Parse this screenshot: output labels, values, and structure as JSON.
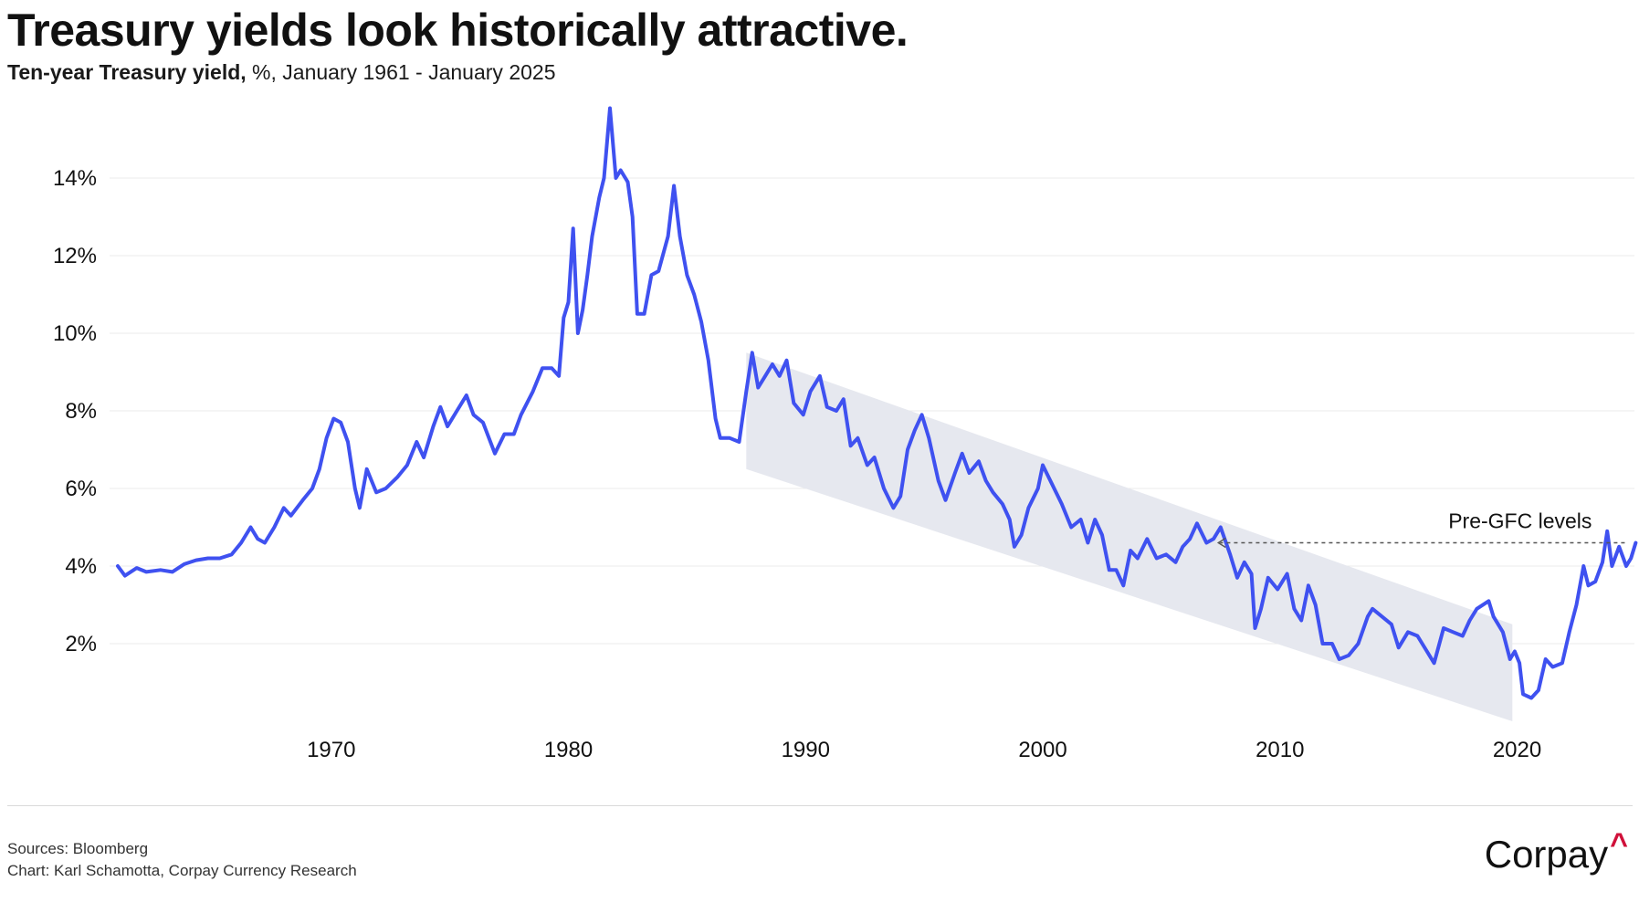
{
  "header": {
    "title": "Treasury yields look historically attractive.",
    "subtitle_bold": "Ten-year Treasury yield,",
    "subtitle_rest": " %, January 1961 - January 2025"
  },
  "colors": {
    "line": "#3f51f0",
    "band": "#e6e8ef",
    "grid": "#ebebeb",
    "text": "#111111",
    "logo_accent": "#d0103a"
  },
  "chart_data": {
    "type": "line",
    "title": "Treasury yields look historically attractive.",
    "subtitle": "Ten-year Treasury yield, %, January 1961 - January 2025",
    "xlabel": "",
    "ylabel": "",
    "xlim": [
      1961.0,
      2025.1
    ],
    "ylim": [
      0,
      16
    ],
    "yticks": [
      2,
      4,
      6,
      8,
      10,
      12,
      14
    ],
    "ytick_labels": [
      "2%",
      "4%",
      "6%",
      "8%",
      "10%",
      "12%",
      "14%"
    ],
    "xticks": [
      1970,
      1980,
      1990,
      2000,
      2010,
      2020
    ],
    "xtick_labels": [
      "1970",
      "1980",
      "1990",
      "2000",
      "2010",
      "2020"
    ],
    "grid": "horizontal",
    "legend": "none",
    "series": [
      {
        "values": [
          [
            1961.0,
            4.0
          ],
          [
            1961.3,
            3.75
          ],
          [
            1961.8,
            3.95
          ],
          [
            1962.2,
            3.85
          ],
          [
            1962.8,
            3.9
          ],
          [
            1963.3,
            3.85
          ],
          [
            1963.8,
            4.05
          ],
          [
            1964.3,
            4.15
          ],
          [
            1964.8,
            4.2
          ],
          [
            1965.3,
            4.2
          ],
          [
            1965.8,
            4.3
          ],
          [
            1966.2,
            4.6
          ],
          [
            1966.6,
            5.0
          ],
          [
            1966.9,
            4.7
          ],
          [
            1967.2,
            4.6
          ],
          [
            1967.6,
            5.0
          ],
          [
            1968.0,
            5.5
          ],
          [
            1968.3,
            5.3
          ],
          [
            1968.8,
            5.7
          ],
          [
            1969.2,
            6.0
          ],
          [
            1969.5,
            6.5
          ],
          [
            1969.8,
            7.3
          ],
          [
            1970.1,
            7.8
          ],
          [
            1970.4,
            7.7
          ],
          [
            1970.7,
            7.2
          ],
          [
            1971.0,
            6.0
          ],
          [
            1971.2,
            5.5
          ],
          [
            1971.5,
            6.5
          ],
          [
            1971.9,
            5.9
          ],
          [
            1972.3,
            6.0
          ],
          [
            1972.8,
            6.3
          ],
          [
            1973.2,
            6.6
          ],
          [
            1973.6,
            7.2
          ],
          [
            1973.9,
            6.8
          ],
          [
            1974.3,
            7.6
          ],
          [
            1974.6,
            8.1
          ],
          [
            1974.9,
            7.6
          ],
          [
            1975.3,
            8.0
          ],
          [
            1975.7,
            8.4
          ],
          [
            1976.0,
            7.9
          ],
          [
            1976.4,
            7.7
          ],
          [
            1976.9,
            6.9
          ],
          [
            1977.3,
            7.4
          ],
          [
            1977.7,
            7.4
          ],
          [
            1978.0,
            7.9
          ],
          [
            1978.5,
            8.5
          ],
          [
            1978.9,
            9.1
          ],
          [
            1979.3,
            9.1
          ],
          [
            1979.6,
            8.9
          ],
          [
            1979.8,
            10.4
          ],
          [
            1980.0,
            10.8
          ],
          [
            1980.2,
            12.7
          ],
          [
            1980.4,
            10.0
          ],
          [
            1980.6,
            10.6
          ],
          [
            1980.8,
            11.5
          ],
          [
            1981.0,
            12.5
          ],
          [
            1981.3,
            13.5
          ],
          [
            1981.5,
            14.0
          ],
          [
            1981.75,
            15.8
          ],
          [
            1982.0,
            14.0
          ],
          [
            1982.2,
            14.2
          ],
          [
            1982.5,
            13.9
          ],
          [
            1982.7,
            13.0
          ],
          [
            1982.9,
            10.5
          ],
          [
            1983.2,
            10.5
          ],
          [
            1983.5,
            11.5
          ],
          [
            1983.8,
            11.6
          ],
          [
            1984.2,
            12.5
          ],
          [
            1984.45,
            13.8
          ],
          [
            1984.7,
            12.5
          ],
          [
            1985.0,
            11.5
          ],
          [
            1985.3,
            11.0
          ],
          [
            1985.6,
            10.3
          ],
          [
            1985.9,
            9.3
          ],
          [
            1986.2,
            7.8
          ],
          [
            1986.4,
            7.3
          ],
          [
            1986.8,
            7.3
          ],
          [
            1987.2,
            7.2
          ],
          [
            1987.5,
            8.5
          ],
          [
            1987.75,
            9.5
          ],
          [
            1988.0,
            8.6
          ],
          [
            1988.3,
            8.9
          ],
          [
            1988.6,
            9.2
          ],
          [
            1988.9,
            8.9
          ],
          [
            1989.2,
            9.3
          ],
          [
            1989.5,
            8.2
          ],
          [
            1989.9,
            7.9
          ],
          [
            1990.2,
            8.5
          ],
          [
            1990.6,
            8.9
          ],
          [
            1990.9,
            8.1
          ],
          [
            1991.3,
            8.0
          ],
          [
            1991.6,
            8.3
          ],
          [
            1991.9,
            7.1
          ],
          [
            1992.2,
            7.3
          ],
          [
            1992.6,
            6.6
          ],
          [
            1992.9,
            6.8
          ],
          [
            1993.3,
            6.0
          ],
          [
            1993.7,
            5.5
          ],
          [
            1994.0,
            5.8
          ],
          [
            1994.3,
            7.0
          ],
          [
            1994.6,
            7.5
          ],
          [
            1994.9,
            7.9
          ],
          [
            1995.2,
            7.3
          ],
          [
            1995.6,
            6.2
          ],
          [
            1995.9,
            5.7
          ],
          [
            1996.3,
            6.4
          ],
          [
            1996.6,
            6.9
          ],
          [
            1996.9,
            6.4
          ],
          [
            1997.3,
            6.7
          ],
          [
            1997.6,
            6.2
          ],
          [
            1997.9,
            5.9
          ],
          [
            1998.3,
            5.6
          ],
          [
            1998.6,
            5.2
          ],
          [
            1998.8,
            4.5
          ],
          [
            1999.1,
            4.8
          ],
          [
            1999.4,
            5.5
          ],
          [
            1999.8,
            6.0
          ],
          [
            2000.0,
            6.6
          ],
          [
            2000.4,
            6.1
          ],
          [
            2000.8,
            5.6
          ],
          [
            2001.2,
            5.0
          ],
          [
            2001.6,
            5.2
          ],
          [
            2001.9,
            4.6
          ],
          [
            2002.2,
            5.2
          ],
          [
            2002.5,
            4.8
          ],
          [
            2002.8,
            3.9
          ],
          [
            2003.1,
            3.9
          ],
          [
            2003.4,
            3.5
          ],
          [
            2003.7,
            4.4
          ],
          [
            2004.0,
            4.2
          ],
          [
            2004.4,
            4.7
          ],
          [
            2004.8,
            4.2
          ],
          [
            2005.2,
            4.3
          ],
          [
            2005.6,
            4.1
          ],
          [
            2005.9,
            4.5
          ],
          [
            2006.2,
            4.7
          ],
          [
            2006.5,
            5.1
          ],
          [
            2006.9,
            4.6
          ],
          [
            2007.2,
            4.7
          ],
          [
            2007.5,
            5.0
          ],
          [
            2007.9,
            4.3
          ],
          [
            2008.2,
            3.7
          ],
          [
            2008.5,
            4.1
          ],
          [
            2008.8,
            3.8
          ],
          [
            2008.95,
            2.4
          ],
          [
            2009.2,
            2.9
          ],
          [
            2009.5,
            3.7
          ],
          [
            2009.9,
            3.4
          ],
          [
            2010.3,
            3.8
          ],
          [
            2010.6,
            2.9
          ],
          [
            2010.9,
            2.6
          ],
          [
            2011.2,
            3.5
          ],
          [
            2011.5,
            3.0
          ],
          [
            2011.8,
            2.0
          ],
          [
            2012.2,
            2.0
          ],
          [
            2012.5,
            1.6
          ],
          [
            2012.9,
            1.7
          ],
          [
            2013.3,
            2.0
          ],
          [
            2013.7,
            2.7
          ],
          [
            2013.9,
            2.9
          ],
          [
            2014.3,
            2.7
          ],
          [
            2014.7,
            2.5
          ],
          [
            2015.0,
            1.9
          ],
          [
            2015.4,
            2.3
          ],
          [
            2015.8,
            2.2
          ],
          [
            2016.2,
            1.8
          ],
          [
            2016.5,
            1.5
          ],
          [
            2016.9,
            2.4
          ],
          [
            2017.3,
            2.3
          ],
          [
            2017.7,
            2.2
          ],
          [
            2018.0,
            2.6
          ],
          [
            2018.3,
            2.9
          ],
          [
            2018.8,
            3.1
          ],
          [
            2019.0,
            2.7
          ],
          [
            2019.4,
            2.3
          ],
          [
            2019.7,
            1.6
          ],
          [
            2019.9,
            1.8
          ],
          [
            2020.1,
            1.5
          ],
          [
            2020.25,
            0.7
          ],
          [
            2020.6,
            0.6
          ],
          [
            2020.9,
            0.8
          ],
          [
            2021.2,
            1.6
          ],
          [
            2021.5,
            1.4
          ],
          [
            2021.9,
            1.5
          ],
          [
            2022.2,
            2.3
          ],
          [
            2022.5,
            3.0
          ],
          [
            2022.8,
            4.0
          ],
          [
            2023.0,
            3.5
          ],
          [
            2023.3,
            3.6
          ],
          [
            2023.6,
            4.1
          ],
          [
            2023.8,
            4.9
          ],
          [
            2024.0,
            4.0
          ],
          [
            2024.3,
            4.5
          ],
          [
            2024.6,
            4.0
          ],
          [
            2024.8,
            4.2
          ],
          [
            2025.0,
            4.6
          ]
        ]
      }
    ],
    "band": {
      "upper": [
        [
          1987.5,
          9.5
        ],
        [
          2019.8,
          2.5
        ]
      ],
      "lower": [
        [
          1987.5,
          6.5
        ],
        [
          2019.8,
          0.0
        ]
      ]
    },
    "annotations": [
      {
        "text": "Pre-GFC levels",
        "arrow_from": [
          2025.0,
          4.6
        ],
        "arrow_to": [
          2007.4,
          4.6
        ]
      }
    ]
  },
  "footer": {
    "source_line": "Sources: Bloomberg",
    "credit_line": "Chart: Karl Schamotta, Corpay Currency Research",
    "logo_text": "Corpay",
    "logo_mark": "^"
  }
}
